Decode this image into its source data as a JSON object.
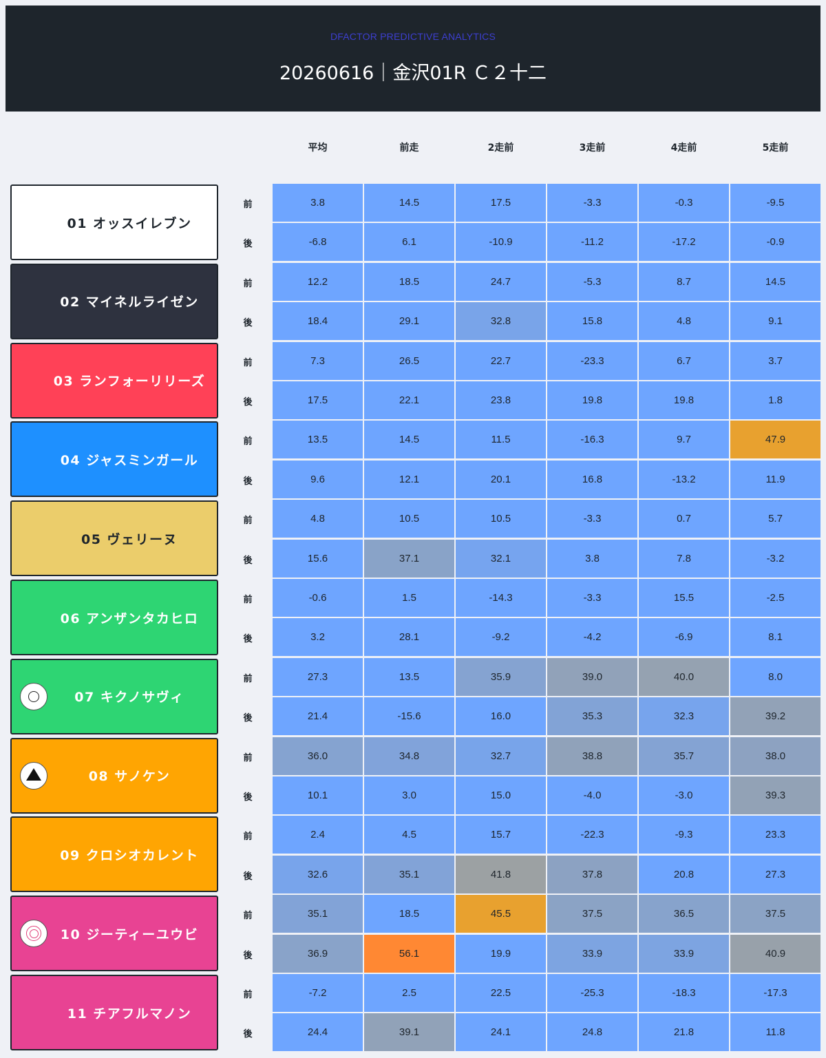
{
  "header": {
    "subtitle": "DFACTOR PREDICTIVE ANALYTICS",
    "title": "20260616｜金沢01R Ｃ２十二"
  },
  "columns": [
    "平均",
    "前走",
    "2走前",
    "3走前",
    "4走前",
    "5走前"
  ],
  "row_labels": {
    "front": "前",
    "back": "後"
  },
  "colors": {
    "cell_default": "#6ea5ff",
    "hot": "#ff8833",
    "warm": "#e8a12f"
  },
  "horses": [
    {
      "name": "01 オッスイレブン",
      "bg": "#ffffff",
      "fg": "#1e252c",
      "mark": null,
      "front": [
        "3.8",
        "14.5",
        "17.5",
        "-3.3",
        "-0.3",
        "-9.5"
      ],
      "back": [
        "-6.8",
        "6.1",
        "-10.9",
        "-11.2",
        "-17.2",
        "-0.9"
      ]
    },
    {
      "name": "02 マイネルライゼン",
      "bg": "#2e323f",
      "fg": "#ffffff",
      "mark": null,
      "front": [
        "12.2",
        "18.5",
        "24.7",
        "-5.3",
        "8.7",
        "14.5"
      ],
      "back": [
        "18.4",
        "29.1",
        "32.8",
        "15.8",
        "4.8",
        "9.1"
      ]
    },
    {
      "name": "03 ランフォーリリーズ",
      "bg": "#ff4157",
      "fg": "#ffffff",
      "mark": null,
      "front": [
        "7.3",
        "26.5",
        "22.7",
        "-23.3",
        "6.7",
        "3.7"
      ],
      "back": [
        "17.5",
        "22.1",
        "23.8",
        "19.8",
        "19.8",
        "1.8"
      ]
    },
    {
      "name": "04 ジャスミンガール",
      "bg": "#1e90ff",
      "fg": "#ffffff",
      "mark": null,
      "front": [
        "13.5",
        "14.5",
        "11.5",
        "-16.3",
        "9.7",
        "47.9"
      ],
      "back": [
        "9.6",
        "12.1",
        "20.1",
        "16.8",
        "-13.2",
        "11.9"
      ]
    },
    {
      "name": "05 ヴェリーヌ",
      "bg": "#ebcd6b",
      "fg": "#1e252c",
      "mark": null,
      "front": [
        "4.8",
        "10.5",
        "10.5",
        "-3.3",
        "0.7",
        "5.7"
      ],
      "back": [
        "15.6",
        "37.1",
        "32.1",
        "3.8",
        "7.8",
        "-3.2"
      ]
    },
    {
      "name": "06 アンザンタカヒロ",
      "bg": "#2ed573",
      "fg": "#ffffff",
      "mark": null,
      "front": [
        "-0.6",
        "1.5",
        "-14.3",
        "-3.3",
        "15.5",
        "-2.5"
      ],
      "back": [
        "3.2",
        "28.1",
        "-9.2",
        "-4.2",
        "-6.9",
        "8.1"
      ]
    },
    {
      "name": "07 キクノサヴィ",
      "bg": "#2ed573",
      "fg": "#ffffff",
      "mark": "circle",
      "front": [
        "27.3",
        "13.5",
        "35.9",
        "39.0",
        "40.0",
        "8.0"
      ],
      "back": [
        "21.4",
        "-15.6",
        "16.0",
        "35.3",
        "32.3",
        "39.2"
      ]
    },
    {
      "name": "08 サノケン",
      "bg": "#ffa502",
      "fg": "#ffffff",
      "mark": "triangle",
      "front": [
        "36.0",
        "34.8",
        "32.7",
        "38.8",
        "35.7",
        "38.0"
      ],
      "back": [
        "10.1",
        "3.0",
        "15.0",
        "-4.0",
        "-3.0",
        "39.3"
      ]
    },
    {
      "name": "09 クロシオカレント",
      "bg": "#ffa502",
      "fg": "#ffffff",
      "mark": null,
      "front": [
        "2.4",
        "4.5",
        "15.7",
        "-22.3",
        "-9.3",
        "23.3"
      ],
      "back": [
        "32.6",
        "35.1",
        "41.8",
        "37.8",
        "20.8",
        "27.3"
      ]
    },
    {
      "name": "10 ジーティーユウビ",
      "bg": "#e84393",
      "fg": "#ffffff",
      "mark": "double-circle",
      "front": [
        "35.1",
        "18.5",
        "45.5",
        "37.5",
        "36.5",
        "37.5"
      ],
      "back": [
        "36.9",
        "56.1",
        "19.9",
        "33.9",
        "33.9",
        "40.9"
      ]
    },
    {
      "name": "11 チアフルマノン",
      "bg": "#e84393",
      "fg": "#ffffff",
      "mark": null,
      "front": [
        "-7.2",
        "2.5",
        "22.5",
        "-25.3",
        "-18.3",
        "-17.3"
      ],
      "back": [
        "24.4",
        "39.1",
        "24.1",
        "24.8",
        "21.8",
        "11.8"
      ]
    }
  ]
}
